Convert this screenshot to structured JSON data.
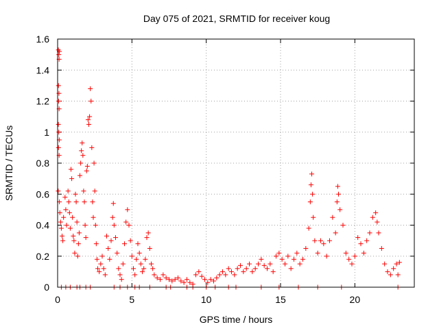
{
  "chart_data": {
    "type": "scatter",
    "title": "Day 075 of 2021, SRMTID for receiver koug",
    "xlabel": "GPS time / hours",
    "ylabel": "SRMTID / TECUs",
    "xlim": [
      0,
      24
    ],
    "ylim": [
      0,
      1.6
    ],
    "xticks": [
      0,
      5,
      10,
      15,
      20
    ],
    "xtick_labels": [
      "0",
      "5",
      "10",
      "15",
      "20"
    ],
    "yticks": [
      0,
      0.2,
      0.4,
      0.6,
      0.8,
      1,
      1.2,
      1.4,
      1.6
    ],
    "ytick_labels": [
      "0",
      "0.2",
      "0.4",
      "0.6",
      "0.8",
      "1",
      "1.2",
      "1.4",
      "1.6"
    ],
    "grid": true,
    "marker": "+",
    "color": "#ff0000",
    "series": [
      {
        "name": "SRMTID",
        "points": [
          [
            0.05,
            1.53
          ],
          [
            0.08,
            1.5
          ],
          [
            0.1,
            1.47
          ],
          [
            0.12,
            1.52
          ],
          [
            0.06,
            1.3
          ],
          [
            0.09,
            1.25
          ],
          [
            0.07,
            1.2
          ],
          [
            0.1,
            1.15
          ],
          [
            0.05,
            1.05
          ],
          [
            0.08,
            1.0
          ],
          [
            0.11,
            0.95
          ],
          [
            0.06,
            0.9
          ],
          [
            0.1,
            0.85
          ],
          [
            0.04,
            0.62
          ],
          [
            0.12,
            0.55
          ],
          [
            0.15,
            0.48
          ],
          [
            0.2,
            0.42
          ],
          [
            0.25,
            0.38
          ],
          [
            0.3,
            0.33
          ],
          [
            0.35,
            0.3
          ],
          [
            0.4,
            0.45
          ],
          [
            0.5,
            0.58
          ],
          [
            0.55,
            0.5
          ],
          [
            0.6,
            0.4
          ],
          [
            0.7,
            0.62
          ],
          [
            0.75,
            0.55
          ],
          [
            0.8,
            0.48
          ],
          [
            0.85,
            0.38
          ],
          [
            0.9,
            0.76
          ],
          [
            0.95,
            0.7
          ],
          [
            1.0,
            0.45
          ],
          [
            1.05,
            0.33
          ],
          [
            1.1,
            0.3
          ],
          [
            1.15,
            0.22
          ],
          [
            1.2,
            0.6
          ],
          [
            1.25,
            0.55
          ],
          [
            1.3,
            0.42
          ],
          [
            1.35,
            0.2
          ],
          [
            1.4,
            0.28
          ],
          [
            1.45,
            0.35
          ],
          [
            1.5,
            0.72
          ],
          [
            1.55,
            0.8
          ],
          [
            1.6,
            0.88
          ],
          [
            1.65,
            0.93
          ],
          [
            1.7,
            0.85
          ],
          [
            1.75,
            0.62
          ],
          [
            1.8,
            0.55
          ],
          [
            1.85,
            0.4
          ],
          [
            1.9,
            0.32
          ],
          [
            1.95,
            0.75
          ],
          [
            2.0,
            0.78
          ],
          [
            2.05,
            1.08
          ],
          [
            2.1,
            1.05
          ],
          [
            2.15,
            1.1
          ],
          [
            2.2,
            1.28
          ],
          [
            2.25,
            1.2
          ],
          [
            2.3,
            0.9
          ],
          [
            2.35,
            0.55
          ],
          [
            2.4,
            0.45
          ],
          [
            2.45,
            0.8
          ],
          [
            2.5,
            0.62
          ],
          [
            2.55,
            0.4
          ],
          [
            2.6,
            0.28
          ],
          [
            2.65,
            0.18
          ],
          [
            2.7,
            0.12
          ],
          [
            2.8,
            0.1
          ],
          [
            2.9,
            0.15
          ],
          [
            3.0,
            0.2
          ],
          [
            3.1,
            0.12
          ],
          [
            3.2,
            0.08
          ],
          [
            3.3,
            0.33
          ],
          [
            3.4,
            0.25
          ],
          [
            3.5,
            0.18
          ],
          [
            3.6,
            0.3
          ],
          [
            3.7,
            0.45
          ],
          [
            3.75,
            0.54
          ],
          [
            3.8,
            0.4
          ],
          [
            3.9,
            0.32
          ],
          [
            4.0,
            0.22
          ],
          [
            4.1,
            0.12
          ],
          [
            4.2,
            0.08
          ],
          [
            4.3,
            0.05
          ],
          [
            4.4,
            0.15
          ],
          [
            4.5,
            0.28
          ],
          [
            4.6,
            0.42
          ],
          [
            4.7,
            0.5
          ],
          [
            4.8,
            0.4
          ],
          [
            4.9,
            0.3
          ],
          [
            5.0,
            0.2
          ],
          [
            5.1,
            0.12
          ],
          [
            5.2,
            0.08
          ],
          [
            5.3,
            0.18
          ],
          [
            5.4,
            0.28
          ],
          [
            5.5,
            0.22
          ],
          [
            5.6,
            0.15
          ],
          [
            5.7,
            0.1
          ],
          [
            5.8,
            0.12
          ],
          [
            5.9,
            0.18
          ],
          [
            6.0,
            0.32
          ],
          [
            6.1,
            0.35
          ],
          [
            6.2,
            0.25
          ],
          [
            6.3,
            0.15
          ],
          [
            6.4,
            0.12
          ],
          [
            6.5,
            0.08
          ],
          [
            6.7,
            0.06
          ],
          [
            6.9,
            0.05
          ],
          [
            7.1,
            0.08
          ],
          [
            7.3,
            0.06
          ],
          [
            7.5,
            0.05
          ],
          [
            7.7,
            0.04
          ],
          [
            7.9,
            0.05
          ],
          [
            8.1,
            0.06
          ],
          [
            8.3,
            0.04
          ],
          [
            8.5,
            0.03
          ],
          [
            8.7,
            0.05
          ],
          [
            8.9,
            0.03
          ],
          [
            9.1,
            0.02
          ],
          [
            9.3,
            0.08
          ],
          [
            9.5,
            0.1
          ],
          [
            9.7,
            0.07
          ],
          [
            9.9,
            0.05
          ],
          [
            10.1,
            0.03
          ],
          [
            10.3,
            0.05
          ],
          [
            10.5,
            0.04
          ],
          [
            10.7,
            0.06
          ],
          [
            10.9,
            0.08
          ],
          [
            11.1,
            0.1
          ],
          [
            11.3,
            0.08
          ],
          [
            11.5,
            0.12
          ],
          [
            11.7,
            0.1
          ],
          [
            11.9,
            0.08
          ],
          [
            12.1,
            0.12
          ],
          [
            12.3,
            0.14
          ],
          [
            12.5,
            0.1
          ],
          [
            12.7,
            0.12
          ],
          [
            12.9,
            0.15
          ],
          [
            13.1,
            0.1
          ],
          [
            13.3,
            0.12
          ],
          [
            13.5,
            0.15
          ],
          [
            13.7,
            0.18
          ],
          [
            13.9,
            0.14
          ],
          [
            14.1,
            0.12
          ],
          [
            14.3,
            0.15
          ],
          [
            14.5,
            0.1
          ],
          [
            14.7,
            0.2
          ],
          [
            14.9,
            0.22
          ],
          [
            15.1,
            0.18
          ],
          [
            15.3,
            0.15
          ],
          [
            15.5,
            0.2
          ],
          [
            15.7,
            0.12
          ],
          [
            15.9,
            0.18
          ],
          [
            16.1,
            0.22
          ],
          [
            16.3,
            0.15
          ],
          [
            16.5,
            0.18
          ],
          [
            16.7,
            0.25
          ],
          [
            16.9,
            0.38
          ],
          [
            17.0,
            0.55
          ],
          [
            17.05,
            0.66
          ],
          [
            17.1,
            0.73
          ],
          [
            17.15,
            0.6
          ],
          [
            17.2,
            0.45
          ],
          [
            17.3,
            0.3
          ],
          [
            17.5,
            0.22
          ],
          [
            17.7,
            0.3
          ],
          [
            17.9,
            0.28
          ],
          [
            18.1,
            0.2
          ],
          [
            18.3,
            0.3
          ],
          [
            18.5,
            0.45
          ],
          [
            18.7,
            0.35
          ],
          [
            18.8,
            0.55
          ],
          [
            18.85,
            0.65
          ],
          [
            18.9,
            0.6
          ],
          [
            19.0,
            0.5
          ],
          [
            19.2,
            0.4
          ],
          [
            19.4,
            0.22
          ],
          [
            19.6,
            0.18
          ],
          [
            19.8,
            0.15
          ],
          [
            20.0,
            0.2
          ],
          [
            20.2,
            0.32
          ],
          [
            20.4,
            0.28
          ],
          [
            20.6,
            0.22
          ],
          [
            20.8,
            0.3
          ],
          [
            21.0,
            0.35
          ],
          [
            21.2,
            0.45
          ],
          [
            21.4,
            0.48
          ],
          [
            21.5,
            0.42
          ],
          [
            21.6,
            0.35
          ],
          [
            21.8,
            0.25
          ],
          [
            22.0,
            0.15
          ],
          [
            22.2,
            0.1
          ],
          [
            22.4,
            0.08
          ],
          [
            22.6,
            0.12
          ],
          [
            22.8,
            0.15
          ],
          [
            22.9,
            0.08
          ],
          [
            23.0,
            0.16
          ]
        ],
        "zero_points": [
          0.25,
          0.55,
          0.85,
          1.3,
          1.5,
          1.9,
          2.2,
          3.8,
          4.2,
          4.7,
          5.2,
          5.5,
          6.2,
          7.3,
          7.6,
          8.7,
          9.1,
          10.0,
          10.6,
          11.5,
          12.0,
          13.7,
          14.9,
          16.2,
          17.5,
          19.1,
          22.9
        ]
      }
    ]
  }
}
